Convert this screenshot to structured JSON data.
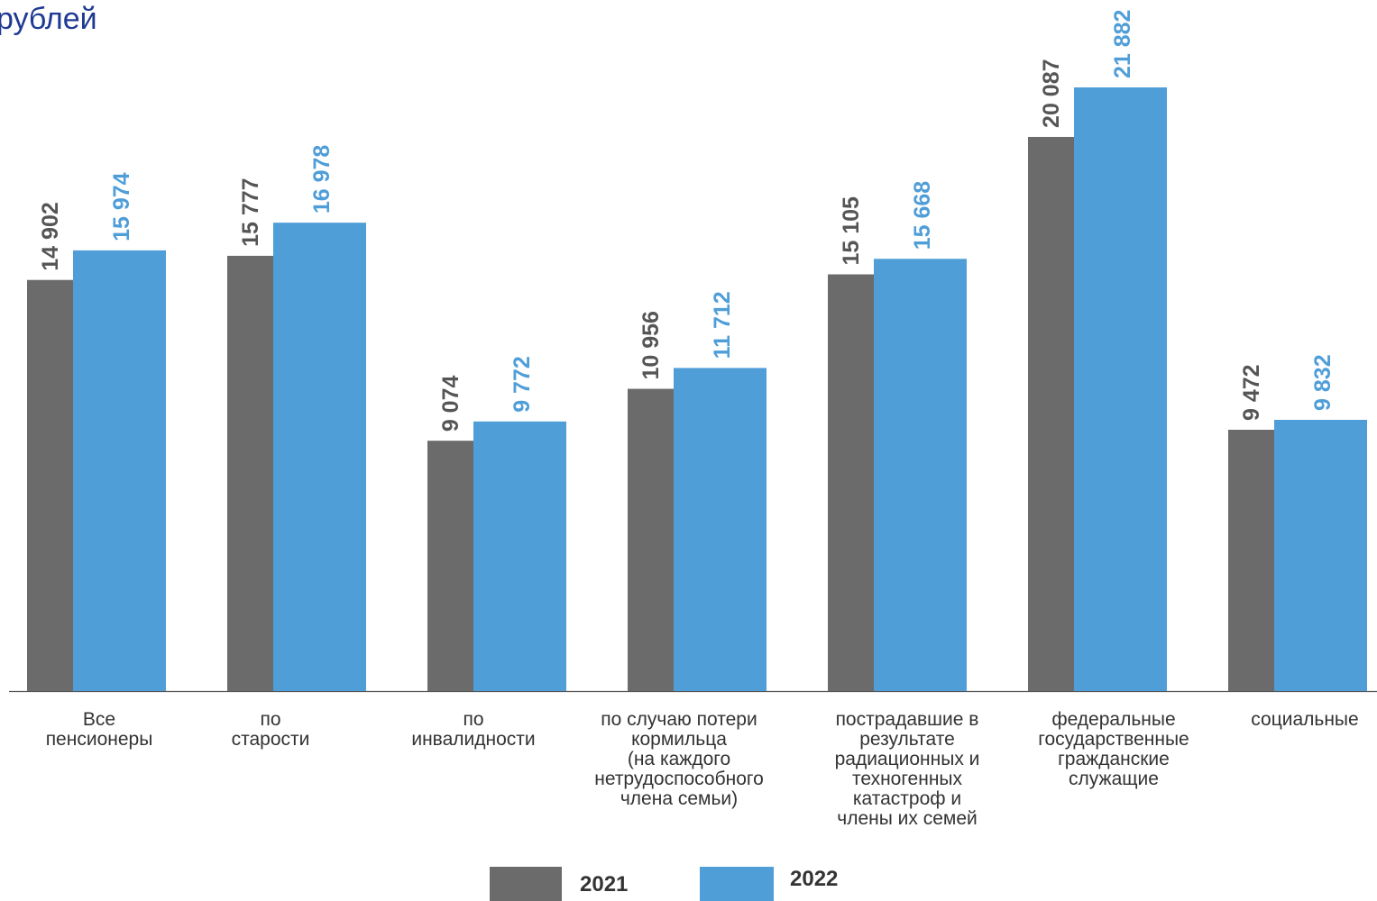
{
  "chart_data": {
    "type": "bar",
    "title": "рублей",
    "categories": [
      "Все\nпенсионеры",
      "по\nстарости",
      "по\nинвалидности",
      "по случаю потери\nкормильца\n(на каждого\nнетрудоспособного\nчлена семьи)",
      "пострадавшие в\nрезультате\nрадиационных и\nтехногенных\nкатастроф  и\nчлены их семей",
      "федеральные\nгосударственные\nгражданские\nслужащие",
      "социальные"
    ],
    "series": [
      {
        "name": "2021",
        "color": "#6b6b6b",
        "values": [
          14902,
          15777,
          9074,
          10956,
          15105,
          20087,
          9472
        ],
        "labels": [
          "14 902",
          "15 777",
          "9 074",
          "10 956",
          "15 105",
          "20 087",
          "9 472"
        ]
      },
      {
        "name": "2022",
        "color": "#4f9ed8",
        "values": [
          15974,
          16978,
          9772,
          11712,
          15668,
          21882,
          9832
        ],
        "labels": [
          "15 974",
          "16 978",
          "9 772",
          "11 712",
          "15 668",
          "21 882",
          "9 832"
        ]
      }
    ],
    "ylim": [
      0,
      25000
    ],
    "grid": false,
    "legend_position": "bottom"
  }
}
